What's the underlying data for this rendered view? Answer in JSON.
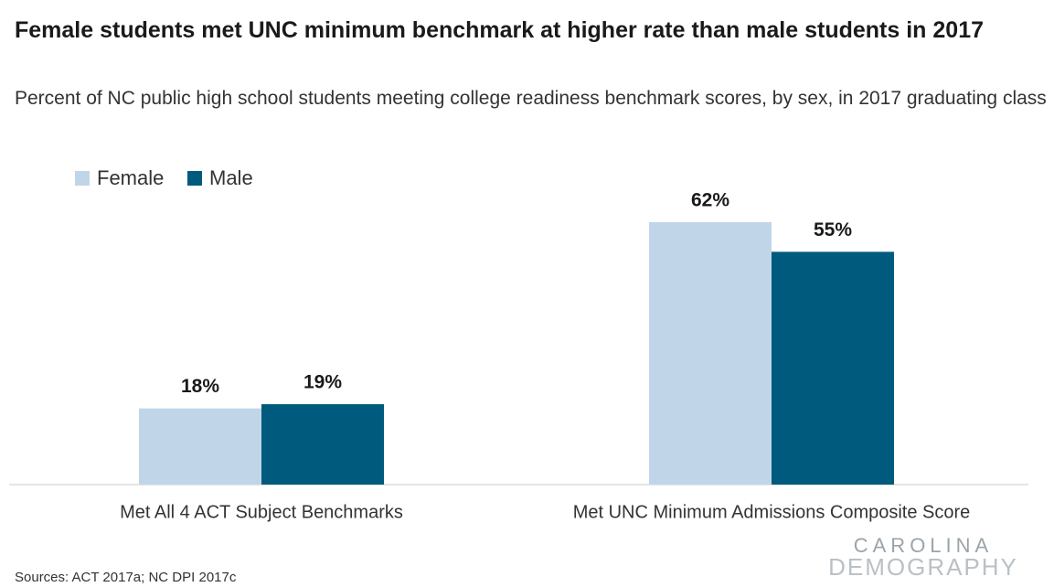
{
  "chart_data": {
    "type": "bar",
    "title": "Female students met UNC minimum benchmark at higher rate than male students in 2017",
    "subtitle": "Percent of NC public high school students meeting college readiness benchmark scores, by sex, in 2017 graduating class",
    "categories": [
      "Met All 4 ACT Subject Benchmarks",
      "Met UNC Minimum Admissions Composite Score"
    ],
    "series": [
      {
        "name": "Female",
        "color": "#c0d6e8",
        "values": [
          18,
          62
        ],
        "value_labels": [
          "18%",
          "62%"
        ]
      },
      {
        "name": "Male",
        "color": "#005a7e",
        "values": [
          19,
          55
        ],
        "value_labels": [
          "19%",
          "55%"
        ]
      }
    ],
    "source": "Sources: ACT 2017a; NC DPI 2017c",
    "logo": [
      "CAROLINA",
      "DEMOGRAPHY"
    ]
  }
}
